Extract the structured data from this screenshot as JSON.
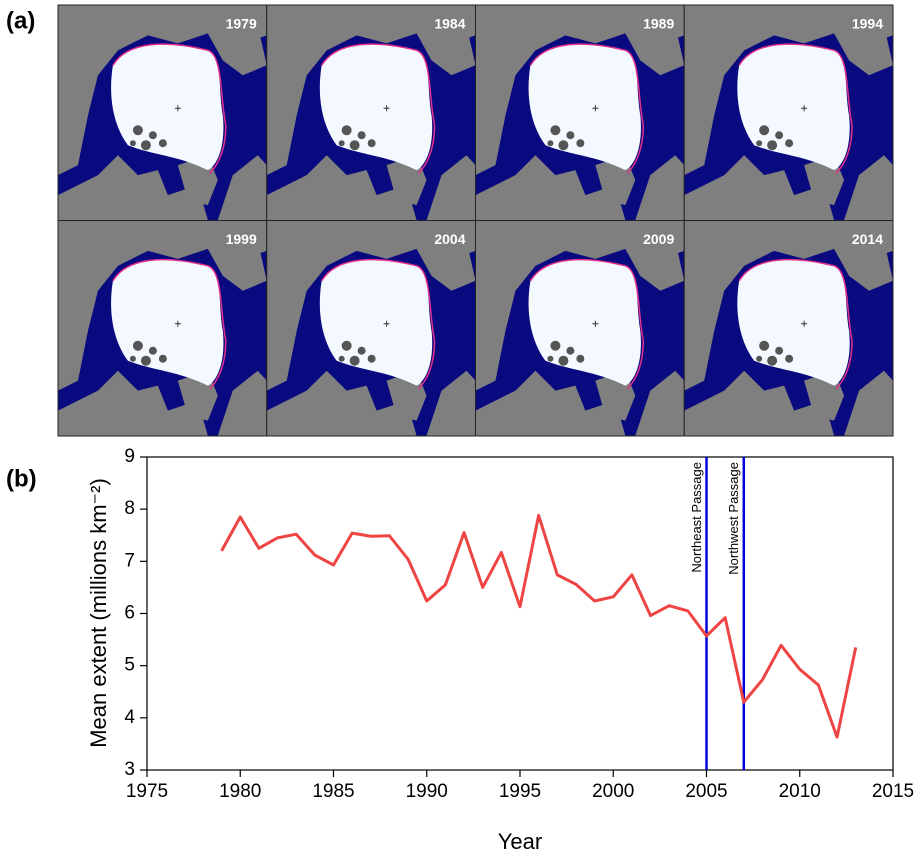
{
  "panel_a": {
    "label": "(a)",
    "maps": [
      "1979",
      "1984",
      "1989",
      "1994",
      "1999",
      "2004",
      "2009",
      "2014"
    ]
  },
  "chart_data": {
    "type": "line",
    "panel_label": "(b)",
    "xlabel": "Year",
    "ylabel": "Mean extent (millions km⁻²)",
    "x": [
      1979,
      1980,
      1981,
      1982,
      1983,
      1984,
      1985,
      1986,
      1987,
      1988,
      1989,
      1990,
      1991,
      1992,
      1993,
      1994,
      1995,
      1996,
      1997,
      1998,
      1999,
      2000,
      2001,
      2002,
      2003,
      2004,
      2005,
      2006,
      2007,
      2008,
      2009,
      2010,
      2011,
      2012,
      2013
    ],
    "values": [
      7.2,
      7.85,
      7.25,
      7.45,
      7.52,
      7.12,
      6.93,
      7.54,
      7.48,
      7.49,
      7.04,
      6.24,
      6.55,
      7.55,
      6.5,
      7.17,
      6.13,
      7.88,
      6.74,
      6.56,
      6.24,
      6.32,
      6.74,
      5.96,
      6.15,
      6.05,
      5.57,
      5.92,
      4.3,
      4.73,
      5.39,
      4.93,
      4.63,
      3.63,
      5.35
    ],
    "color": "#ee4444",
    "xlim": [
      1975,
      2015
    ],
    "xticks": [
      1975,
      1980,
      1985,
      1990,
      1995,
      2000,
      2005,
      2010,
      2015
    ],
    "ylim": [
      3,
      9
    ],
    "yticks": [
      3,
      4,
      5,
      6,
      7,
      8,
      9
    ],
    "annotations": [
      {
        "x": 2005,
        "label": "Northeast Passage",
        "color": "#0000dd"
      },
      {
        "x": 2007,
        "label": "Northwest Passage",
        "color": "#0000dd"
      }
    ]
  }
}
